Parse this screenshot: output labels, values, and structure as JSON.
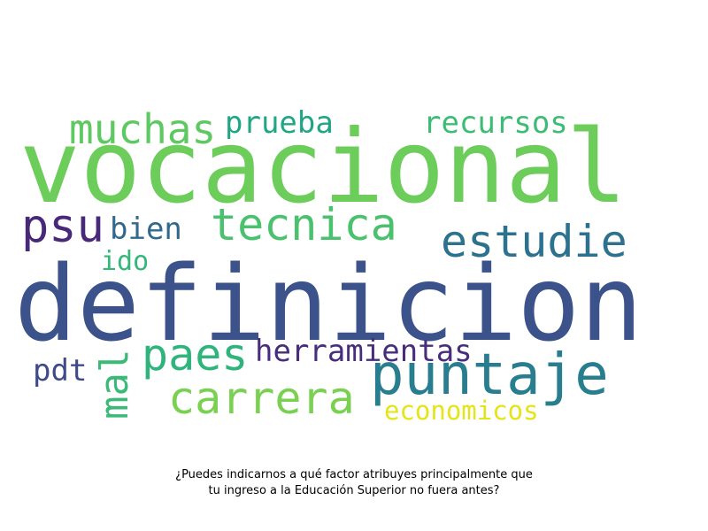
{
  "caption": {
    "line1": "¿Puedes indicarnos a qué factor atribuyes principalmente que",
    "line2": "tu ingreso a la Educación Superior no fuera antes?"
  },
  "words": [
    {
      "text": "vocacional",
      "color": "#6ccd5a"
    },
    {
      "text": "definicion",
      "color": "#3b528b"
    },
    {
      "text": "puntaje",
      "color": "#287d8e"
    },
    {
      "text": "muchas",
      "color": "#5ec962"
    },
    {
      "text": "prueba",
      "color": "#21a685"
    },
    {
      "text": "recursos",
      "color": "#3dbc74"
    },
    {
      "text": "psu",
      "color": "#482878"
    },
    {
      "text": "bien",
      "color": "#31688e"
    },
    {
      "text": "tecnica",
      "color": "#4ac16d"
    },
    {
      "text": "estudie",
      "color": "#2c728e"
    },
    {
      "text": "ido",
      "color": "#35b779"
    },
    {
      "text": "paes",
      "color": "#2fb47c"
    },
    {
      "text": "herramientas",
      "color": "#472d7b"
    },
    {
      "text": "pdt",
      "color": "#3e4a89"
    },
    {
      "text": "mal",
      "color": "#3aba76"
    },
    {
      "text": "carrera",
      "color": "#7ad151"
    },
    {
      "text": "economicos",
      "color": "#e5e419"
    }
  ]
}
